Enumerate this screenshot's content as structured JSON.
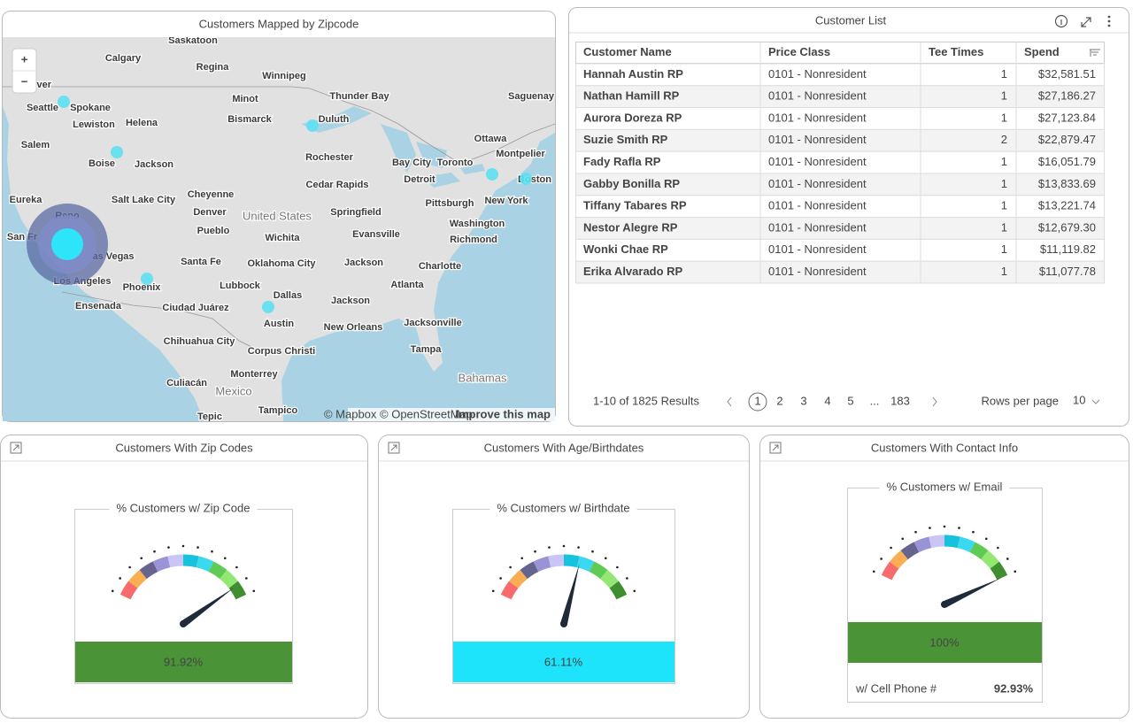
{
  "map": {
    "title": "Customers Mapped by Zipcode",
    "zoom_in": "+",
    "zoom_out": "−",
    "cities": [
      "Saskatoon",
      "Calgary",
      "Regina",
      "Winnipeg",
      "couver",
      "Seattle",
      "Spokane",
      "Minot",
      "Thunder Bay",
      "Saguenay",
      "Lewiston",
      "Helena",
      "Bismarck",
      "Duluth",
      "Salem",
      "Ottawa",
      "Montpelier",
      "Boise",
      "Jackson",
      "Rochester",
      "Bay City",
      "Toronto",
      "Detroit",
      "Boston",
      "Cedar Rapids",
      "Eureka",
      "Salt Lake City",
      "Cheyenne",
      "Pittsburgh",
      "New York",
      "Reno",
      "Denver",
      "United States",
      "Springfield",
      "Washington",
      "San Fr",
      "Pueblo",
      "Wichita",
      "Evansville",
      "Richmond",
      "as Vegas",
      "Santa Fe",
      "Oklahoma City",
      "Jackson",
      "Charlotte",
      "Los Angeles",
      "Phoenix",
      "Lubbock",
      "Dallas",
      "Atlanta",
      "Ensenada",
      "Ciudad Juárez",
      "Jackson",
      "Austin",
      "New Orleans",
      "Jacksonville",
      "Chihuahua City",
      "Corpus Christi",
      "Tampa",
      "Monterrey",
      "Culiacán",
      "Mexico",
      "Bahamas",
      "Tepic",
      "Tampico"
    ],
    "attribution": "© Mapbox © OpenStreetMap",
    "improve": "Improve this map"
  },
  "customer_list": {
    "title": "Customer List",
    "columns": [
      "Customer Name",
      "Price Class",
      "Tee Times",
      "Spend"
    ],
    "rows": [
      [
        "Hannah Austin RP",
        "0101 - Nonresident",
        "1",
        "$32,581.51"
      ],
      [
        "Nathan Hamill RP",
        "0101 - Nonresident",
        "1",
        "$27,186.27"
      ],
      [
        "Aurora Doreza RP",
        "0101 - Nonresident",
        "1",
        "$27,123.84"
      ],
      [
        "Suzie Smith RP",
        "0101 - Nonresident",
        "2",
        "$22,879.47"
      ],
      [
        "Fady Rafla RP",
        "0101 - Nonresident",
        "1",
        "$16,051.79"
      ],
      [
        "Gabby Bonilla RP",
        "0101 - Nonresident",
        "1",
        "$13,833.69"
      ],
      [
        "Tiffany Tabares RP",
        "0101 - Nonresident",
        "1",
        "$13,221.74"
      ],
      [
        "Nestor Alegre RP",
        "0101 - Nonresident",
        "1",
        "$12,679.30"
      ],
      [
        "Wonki Chae RP",
        "0101 - Nonresident",
        "1",
        "$11,119.82"
      ],
      [
        "Erika Alvarado RP",
        "0101 - Nonresident",
        "1",
        "$11,077.78"
      ]
    ],
    "results": "1-10 of 1825 Results",
    "pages": [
      "1",
      "2",
      "3",
      "4",
      "5",
      "...",
      "183"
    ],
    "rows_per_page_label": "Rows per page",
    "rows_per_page": "10"
  },
  "gauges": [
    {
      "panel_title": "Customers With Zip Codes",
      "label": "% Customers w/ Zip Code",
      "value": 91.92,
      "value_label": "91.92%",
      "color": "#4a9337",
      "range": [
        0,
        100
      ]
    },
    {
      "panel_title": "Customers With Age/Birthdates",
      "label": "% Customers w/ Birthdate",
      "value": 61.11,
      "value_label": "61.11%",
      "color": "#1de4fa",
      "range": [
        0,
        100
      ]
    },
    {
      "panel_title": "Customers With Contact Info",
      "label": "% Customers w/ Email",
      "value": 100,
      "value_label": "100%",
      "color": "#4a9337",
      "range": [
        0,
        100
      ],
      "extra_label": "w/ Cell Phone #",
      "extra_value": "92.93%"
    }
  ]
}
